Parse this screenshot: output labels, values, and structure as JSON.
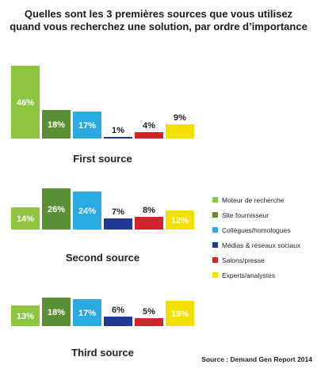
{
  "chart_data": {
    "type": "bar",
    "title": "Quelles sont les 3 premières sources que vous utilisez quand vous recherchez une solution, par ordre d’importance",
    "title_lines": [
      "Quelles sont les 3 premières sources que vous utilisez",
      "quand vous recherchez une solution, par ordre d’importance"
    ],
    "series": [
      {
        "name": "Moteur de recherche",
        "color": "#8cc63f"
      },
      {
        "name": "Site fournisseur",
        "color": "#5b8f35"
      },
      {
        "name": "Collègues/homologues",
        "color": "#29abe2"
      },
      {
        "name": "Médias & réseaux sociaux",
        "color": "#1f3a93"
      },
      {
        "name": "Salons/presse",
        "color": "#d2232a"
      },
      {
        "name": "Experts/analystes",
        "color": "#f2e100"
      }
    ],
    "panels": [
      {
        "label": "First source",
        "values": [
          46,
          18,
          17,
          1,
          4,
          9
        ],
        "value_labels": [
          "46%",
          "18%",
          "17%",
          "1%",
          "4%",
          "9%"
        ]
      },
      {
        "label": "Second source",
        "values": [
          14,
          26,
          24,
          7,
          8,
          12
        ],
        "value_labels": [
          "14%",
          "26%",
          "24%",
          "7%",
          "8%",
          "12%"
        ]
      },
      {
        "label": "Third source",
        "values": [
          13,
          18,
          17,
          6,
          5,
          16
        ],
        "value_labels": [
          "13%",
          "18%",
          "17%",
          "6%",
          "5%",
          "16%"
        ]
      }
    ],
    "unit": "%",
    "legend_position": "right"
  },
  "source": "Source : Demand Gen Report 2014"
}
